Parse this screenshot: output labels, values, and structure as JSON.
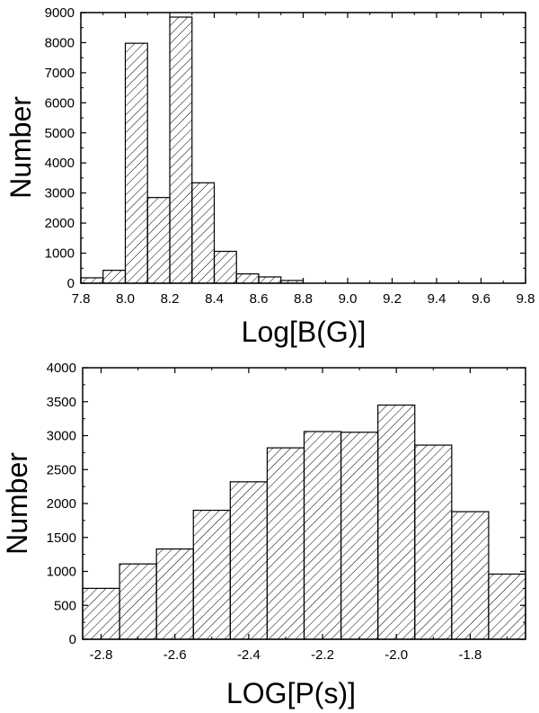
{
  "chart_data": [
    {
      "type": "bar",
      "subtype": "histogram",
      "xlabel": "Log[B(G)]",
      "ylabel": "Number",
      "xlim": [
        7.8,
        9.8
      ],
      "ylim": [
        0,
        9000
      ],
      "xticks": [
        "7.8",
        "8.0",
        "8.2",
        "8.4",
        "8.6",
        "8.8",
        "9.0",
        "9.2",
        "9.4",
        "9.6",
        "9.8"
      ],
      "yticks": [
        "0",
        "1000",
        "2000",
        "3000",
        "4000",
        "5000",
        "6000",
        "7000",
        "8000",
        "9000"
      ],
      "bins": [
        {
          "x0": 7.8,
          "x1": 7.9,
          "value": 180
        },
        {
          "x0": 7.9,
          "x1": 8.0,
          "value": 430
        },
        {
          "x0": 8.0,
          "x1": 8.1,
          "value": 7980
        },
        {
          "x0": 8.1,
          "x1": 8.2,
          "value": 2850
        },
        {
          "x0": 8.2,
          "x1": 8.3,
          "value": 8850
        },
        {
          "x0": 8.3,
          "x1": 8.4,
          "value": 3340
        },
        {
          "x0": 8.4,
          "x1": 8.5,
          "value": 1060
        },
        {
          "x0": 8.5,
          "x1": 8.6,
          "value": 310
        },
        {
          "x0": 8.6,
          "x1": 8.7,
          "value": 210
        },
        {
          "x0": 8.7,
          "x1": 8.8,
          "value": 90
        }
      ],
      "grid": false,
      "fill": "diagonal-hatch",
      "bar_color": "#000000"
    },
    {
      "type": "bar",
      "subtype": "histogram",
      "xlabel": "LOG[P(s)]",
      "ylabel": "Number",
      "xlim": [
        -2.85,
        -1.65
      ],
      "ylim": [
        0,
        4000
      ],
      "xticks": [
        "-2.8",
        "-2.6",
        "-2.4",
        "-2.2",
        "-2.0",
        "-1.8"
      ],
      "yticks": [
        "0",
        "500",
        "1000",
        "1500",
        "2000",
        "2500",
        "3000",
        "3500",
        "4000"
      ],
      "bins": [
        {
          "x0": -2.85,
          "x1": -2.75,
          "value": 750
        },
        {
          "x0": -2.75,
          "x1": -2.65,
          "value": 1110
        },
        {
          "x0": -2.65,
          "x1": -2.55,
          "value": 1330
        },
        {
          "x0": -2.55,
          "x1": -2.45,
          "value": 1900
        },
        {
          "x0": -2.45,
          "x1": -2.35,
          "value": 2320
        },
        {
          "x0": -2.35,
          "x1": -2.25,
          "value": 2820
        },
        {
          "x0": -2.25,
          "x1": -2.15,
          "value": 3060
        },
        {
          "x0": -2.15,
          "x1": -2.05,
          "value": 3050
        },
        {
          "x0": -2.05,
          "x1": -1.95,
          "value": 3450
        },
        {
          "x0": -1.95,
          "x1": -1.85,
          "value": 2860
        },
        {
          "x0": -1.85,
          "x1": -1.75,
          "value": 1880
        },
        {
          "x0": -1.75,
          "x1": -1.65,
          "value": 960
        }
      ],
      "grid": false,
      "fill": "diagonal-hatch",
      "bar_color": "#000000"
    }
  ]
}
